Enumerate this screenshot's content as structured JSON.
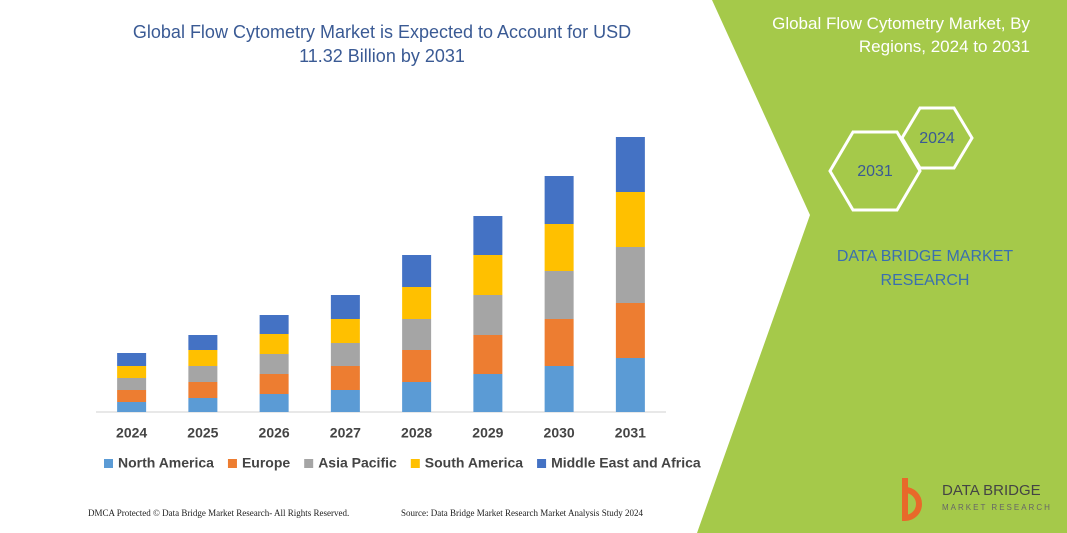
{
  "chart_data": {
    "type": "stacked-bar",
    "title": "Global Flow Cytometry Market is Expected to Account for USD 11.32 Billion by 2031",
    "categories": [
      "2024",
      "2025",
      "2026",
      "2027",
      "2028",
      "2029",
      "2030",
      "2031"
    ],
    "series": [
      {
        "name": "North America",
        "color": "#5b9bd5",
        "values": [
          10,
          14,
          18,
          22,
          30,
          38,
          46,
          54
        ]
      },
      {
        "name": "Europe",
        "color": "#ed7d31",
        "values": [
          12,
          16,
          20,
          24,
          32,
          39,
          47,
          55
        ]
      },
      {
        "name": "Asia Pacific",
        "color": "#a5a5a5",
        "values": [
          12,
          16,
          20,
          23,
          31,
          40,
          48,
          56
        ]
      },
      {
        "name": "South America",
        "color": "#ffc000",
        "values": [
          12,
          16,
          20,
          24,
          32,
          40,
          47,
          55
        ]
      },
      {
        "name": "Middle East and Africa",
        "color": "#4472c4",
        "values": [
          13,
          15,
          19,
          24,
          32,
          39,
          48,
          55
        ]
      }
    ],
    "ylim": [
      0,
      300
    ]
  },
  "panel": {
    "title": "Global Flow Cytometry Market, By Regions, 2024 to 2031",
    "hex_left": "2031",
    "hex_right": "2024",
    "brand": "DATA BRIDGE MARKET RESEARCH"
  },
  "logo": {
    "name": "DATA BRIDGE",
    "tagline": "MARKET RESEARCH"
  },
  "footer": {
    "left": "DMCA Protected © Data Bridge Market Research- All Rights Reserved.",
    "right": "Source: Data Bridge Market Research Market Analysis Study 2024"
  }
}
